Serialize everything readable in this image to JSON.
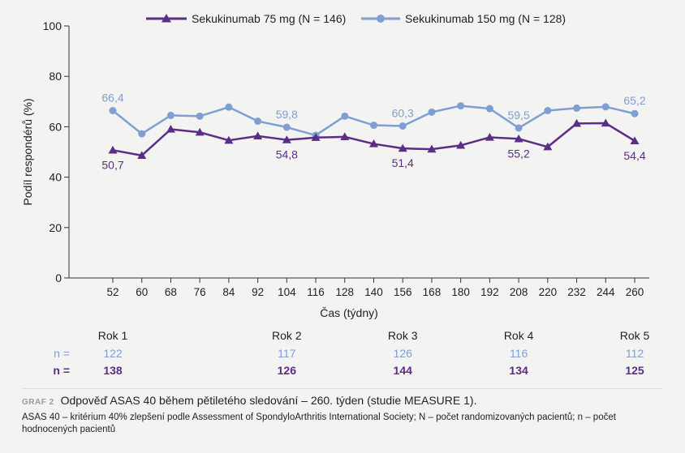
{
  "chart_data": {
    "type": "line",
    "xlabel": "Čas (týdny)",
    "ylabel": "Podíl respondérů (%)",
    "ylim": [
      0,
      100
    ],
    "yticks": [
      "0",
      "20",
      "40",
      "60",
      "80",
      "100"
    ],
    "x": [
      52,
      60,
      68,
      76,
      84,
      92,
      104,
      116,
      128,
      140,
      156,
      168,
      180,
      192,
      208,
      220,
      232,
      244,
      260
    ],
    "x_labels": [
      "52",
      "60",
      "68",
      "76",
      "84",
      "92",
      "104",
      "116",
      "128",
      "140",
      "156",
      "168",
      "180",
      "192",
      "208",
      "220",
      "232",
      "244",
      "260"
    ],
    "legend_position": "top",
    "series": [
      {
        "name": "Sekukinumab 75 mg (N = 146)",
        "color": "#5b2d86",
        "marker": "triangle",
        "values": [
          50.7,
          48.6,
          59.0,
          57.8,
          54.6,
          56.3,
          54.8,
          55.7,
          56.0,
          53.2,
          51.4,
          51.1,
          52.6,
          55.8,
          55.2,
          52.0,
          61.3,
          61.4,
          54.4
        ],
        "labels": [
          {
            "index": 0,
            "text": "50,7",
            "pos": "below"
          },
          {
            "index": 6,
            "text": "54,8",
            "pos": "below"
          },
          {
            "index": 10,
            "text": "51,4",
            "pos": "below"
          },
          {
            "index": 14,
            "text": "55,2",
            "pos": "below"
          },
          {
            "index": 18,
            "text": "54,4",
            "pos": "below"
          }
        ]
      },
      {
        "name": "Sekukinumab 150 mg (N = 128)",
        "color": "#7f9fd4",
        "marker": "circle",
        "values": [
          66.4,
          57.2,
          64.5,
          64.2,
          67.8,
          62.2,
          59.8,
          56.6,
          64.2,
          60.6,
          60.3,
          65.8,
          68.3,
          67.2,
          59.5,
          66.4,
          67.4,
          67.9,
          65.2
        ],
        "labels": [
          {
            "index": 0,
            "text": "66,4",
            "pos": "above"
          },
          {
            "index": 6,
            "text": "59,8",
            "pos": "above"
          },
          {
            "index": 10,
            "text": "60,3",
            "pos": "above"
          },
          {
            "index": 14,
            "text": "59,5",
            "pos": "above"
          },
          {
            "index": 18,
            "text": "65,2",
            "pos": "above"
          }
        ]
      }
    ]
  },
  "year_table": {
    "years": [
      {
        "label": "Rok 1",
        "week": 52,
        "n150": "122",
        "n75": "138"
      },
      {
        "label": "Rok 2",
        "week": 104,
        "n150": "117",
        "n75": "126"
      },
      {
        "label": "Rok 3",
        "week": 156,
        "n150": "126",
        "n75": "144"
      },
      {
        "label": "Rok 4",
        "week": 208,
        "n150": "116",
        "n75": "134"
      },
      {
        "label": "Rok 5",
        "week": 260,
        "n150": "112",
        "n75": "125"
      }
    ],
    "row_label_150": "n =",
    "row_label_75": "n ="
  },
  "caption": {
    "tag": "GRAF 2",
    "title": "Odpověď ASAS 40 během pětiletého sledování – 260. týden (studie MEASURE 1).",
    "description": "ASAS 40 – kritérium 40% zlepšení podle Assessment of SpondyloArthritis International Society; N – počet randomizovaných pacientů; n – počet hodnocených pacientů"
  }
}
